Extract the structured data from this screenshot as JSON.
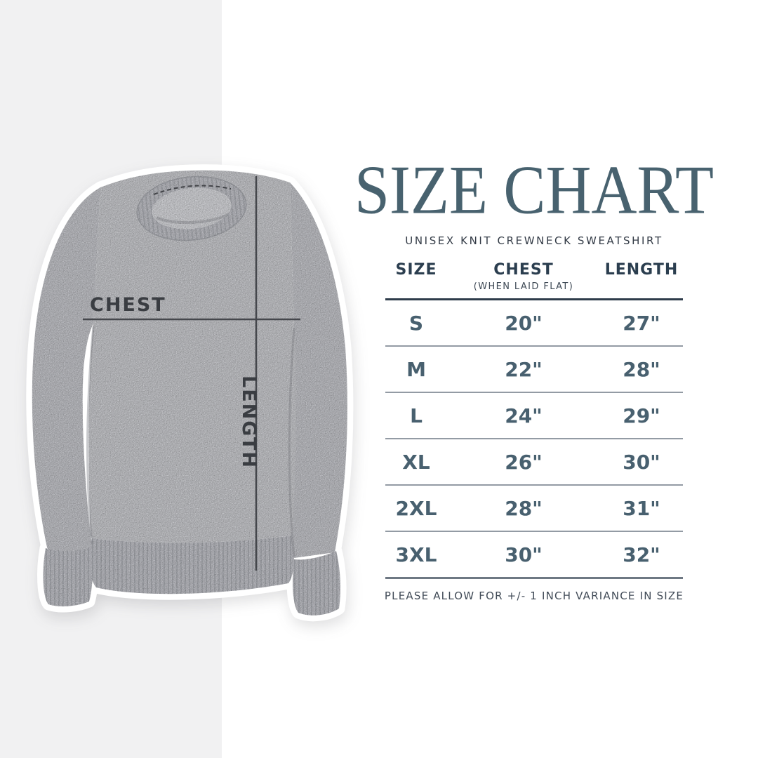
{
  "title": "SIZE CHART",
  "subtitle": "UNISEX KNIT CREWNECK SWEATSHIRT",
  "footnote": "PLEASE ALLOW FOR +/- 1 INCH VARIANCE IN SIZE",
  "diagram": {
    "chest_label": "CHEST",
    "length_label": "LENGTH"
  },
  "chart_data": {
    "type": "table",
    "title": "SIZE CHART",
    "subtitle": "UNISEX KNIT CREWNECK SWEATSHIRT",
    "columns": [
      "SIZE",
      "CHEST",
      "LENGTH"
    ],
    "chest_note": "(WHEN LAID FLAT)",
    "rows": [
      {
        "size": "S",
        "chest": "20\"",
        "length": "27\""
      },
      {
        "size": "M",
        "chest": "22\"",
        "length": "28\""
      },
      {
        "size": "L",
        "chest": "24\"",
        "length": "29\""
      },
      {
        "size": "XL",
        "chest": "26\"",
        "length": "30\""
      },
      {
        "size": "2XL",
        "chest": "28\"",
        "length": "31\""
      },
      {
        "size": "3XL",
        "chest": "30\"",
        "length": "32\""
      }
    ],
    "footnote": "PLEASE ALLOW FOR +/- 1 INCH VARIANCE IN SIZE"
  },
  "colors": {
    "accent_title": "#48626f",
    "table_text": "#48606f",
    "header_text": "#2b3e4f",
    "stripe_background": "#f1f1f2",
    "page_background": "#ffffff",
    "sweatshirt_gray": "#c9cace",
    "annotation_line": "#45474c"
  }
}
